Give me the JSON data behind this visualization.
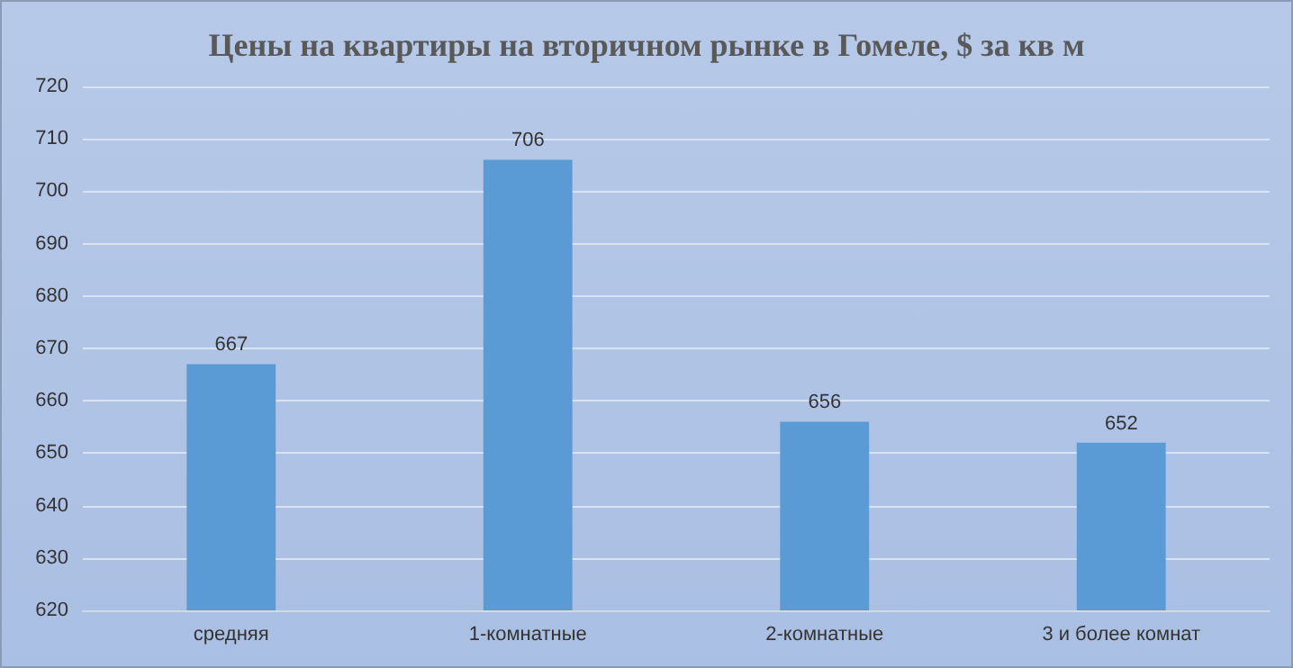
{
  "chart_data": {
    "type": "bar",
    "title": "Цены на квартиры на вторичном рынке в Гомеле, $ за кв м",
    "categories": [
      "средняя",
      "1-комнатные",
      "2-комнатные",
      "3 и более комнат"
    ],
    "values": [
      667,
      706,
      656,
      652
    ],
    "color": "#5b9bd5",
    "ylim": [
      620,
      720
    ],
    "yticks": [
      620,
      630,
      640,
      650,
      660,
      670,
      680,
      690,
      700,
      710,
      720
    ],
    "grid": "y",
    "data_labels": true
  }
}
